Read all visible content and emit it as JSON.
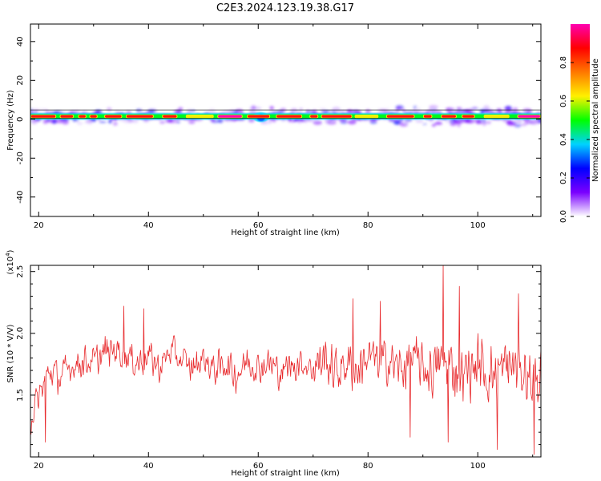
{
  "figure": {
    "title": "C2E3.2024.123.19.38.G17"
  },
  "chart_data": [
    {
      "type": "heatmap",
      "xlabel": "Height of straight line (km)",
      "ylabel": "Frequency (Hz)",
      "xlim": [
        18.5,
        111.5
      ],
      "ylim": [
        -50,
        49
      ],
      "x_ticks": [
        20,
        40,
        60,
        80,
        100
      ],
      "y_ticks": [
        -40,
        -20,
        0,
        20,
        40
      ],
      "grid": false,
      "ridge_frequency_hz": 1.5,
      "colorbar": {
        "label": "Normalized spectral amplitude",
        "range": [
          0.0,
          1.0
        ],
        "ticks": [
          0.0,
          0.2,
          0.4,
          0.6,
          0.8
        ],
        "tick_labels": [
          "0.0",
          "0.2",
          "0.4",
          "0.6",
          "0.8"
        ],
        "colors": [
          "#ffffff",
          "#7a00ff",
          "#0000ff",
          "#00d2ff",
          "#00ff00",
          "#fff000",
          "#ff7800",
          "#ff0000",
          "#ff00b0"
        ]
      }
    },
    {
      "type": "line",
      "xlabel": "Height of straight line (km)",
      "ylabel": "SNR (10 * V/V)",
      "y_scale_label": "(x10^4)",
      "xlim": [
        18.5,
        111.5
      ],
      "ylim": [
        1.0,
        2.55
      ],
      "x_ticks": [
        20,
        40,
        60,
        80,
        100
      ],
      "y_ticks": [
        1.5,
        2.0,
        2.5
      ],
      "y_tick_labels": [
        "1.5",
        "2.0",
        "2.5"
      ],
      "grid": false,
      "color": "#e8292c",
      "x": [
        18.5,
        20,
        22,
        24,
        26,
        28,
        30,
        32,
        34,
        36,
        38,
        40,
        42,
        44,
        46,
        48,
        50,
        52,
        54,
        56,
        58,
        60,
        62,
        64,
        66,
        68,
        70,
        72,
        74,
        76,
        78,
        80,
        82,
        84,
        86,
        88,
        90,
        92,
        94,
        96,
        98,
        100,
        102,
        104,
        106,
        108,
        110,
        111.5
      ],
      "values": [
        1.3,
        1.48,
        1.7,
        1.64,
        1.74,
        1.78,
        1.76,
        1.84,
        1.88,
        1.82,
        1.76,
        1.82,
        1.72,
        1.86,
        1.78,
        1.72,
        1.8,
        1.7,
        1.76,
        1.66,
        1.78,
        1.72,
        1.76,
        1.68,
        1.74,
        1.76,
        1.72,
        1.8,
        1.68,
        1.76,
        1.7,
        1.82,
        1.76,
        1.78,
        1.7,
        1.8,
        1.72,
        1.7,
        1.78,
        1.7,
        1.68,
        1.76,
        1.66,
        1.7,
        1.74,
        1.7,
        1.62,
        1.65
      ],
      "peaks": [
        [
          93.7,
          2.55
        ],
        [
          96.6,
          2.38
        ],
        [
          107.4,
          2.32
        ],
        [
          35.5,
          2.22
        ],
        [
          39.1,
          2.2
        ],
        [
          77.2,
          2.28
        ],
        [
          82.2,
          2.26
        ]
      ],
      "troughs": [
        [
          21.2,
          1.12
        ],
        [
          103.6,
          1.06
        ],
        [
          110.2,
          1.02
        ],
        [
          94.6,
          1.12
        ],
        [
          87.7,
          1.16
        ]
      ]
    }
  ]
}
